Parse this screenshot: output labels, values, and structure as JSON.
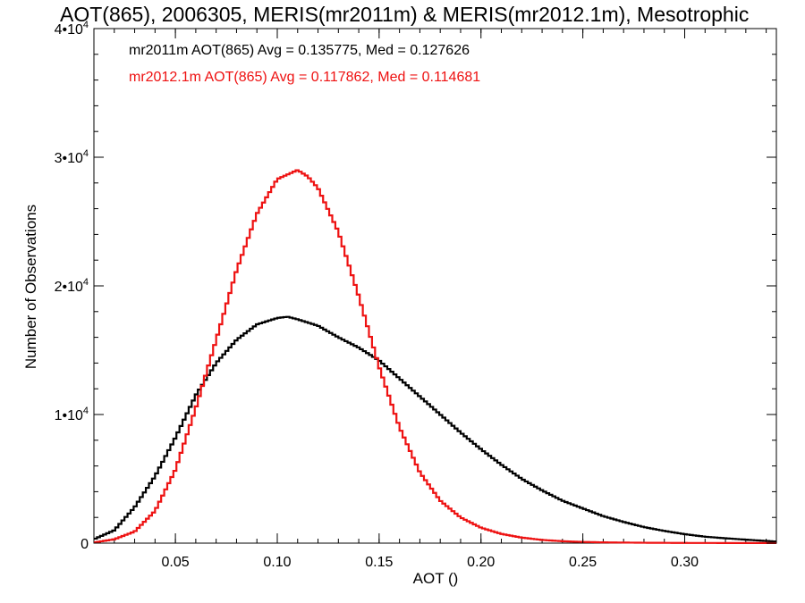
{
  "chart_data": {
    "type": "line",
    "title": "AOT(865), 2006305, MERIS(mr2011m) & MERIS(mr2012.1m), Mesotrophic",
    "xlabel": "AOT ()",
    "ylabel": "Number of Observations",
    "xlim": [
      0.01,
      0.345
    ],
    "ylim": [
      0,
      40000
    ],
    "x_ticks": [
      0.05,
      0.1,
      0.15,
      0.2,
      0.25,
      0.3
    ],
    "x_tick_labels": [
      "0.05",
      "0.10",
      "0.15",
      "0.20",
      "0.25",
      "0.30"
    ],
    "y_ticks": [
      {
        "value": 0,
        "base": "0",
        "exp": ""
      },
      {
        "value": 10000,
        "base": "1•10",
        "exp": "4"
      },
      {
        "value": 20000,
        "base": "2•10",
        "exp": "4"
      },
      {
        "value": 30000,
        "base": "3•10",
        "exp": "4"
      },
      {
        "value": 40000,
        "base": "4•10",
        "exp": "4"
      }
    ],
    "grid": false,
    "legend_position": "top-left",
    "annotations": [
      {
        "text": "mr2011m AOT(865) Avg = 0.135775, Med = 0.127626",
        "color": "#000000"
      },
      {
        "text": "mr2012.1m AOT(865) Avg = 0.117862, Med = 0.114681",
        "color": "#ee1111"
      }
    ],
    "series": [
      {
        "color": "#000000",
        "x": [
          0.01,
          0.02,
          0.03,
          0.04,
          0.05,
          0.06,
          0.07,
          0.08,
          0.09,
          0.1,
          0.105,
          0.11,
          0.12,
          0.13,
          0.14,
          0.15,
          0.16,
          0.17,
          0.18,
          0.19,
          0.2,
          0.21,
          0.22,
          0.23,
          0.24,
          0.25,
          0.26,
          0.27,
          0.28,
          0.29,
          0.3,
          0.31,
          0.32,
          0.33,
          0.345
        ],
        "y": [
          300,
          1000,
          2800,
          5200,
          8200,
          11500,
          14000,
          15800,
          17000,
          17500,
          17600,
          17400,
          16900,
          16000,
          15200,
          14200,
          12800,
          11400,
          10000,
          8600,
          7300,
          6100,
          5000,
          4100,
          3300,
          2700,
          2100,
          1650,
          1250,
          950,
          700,
          500,
          380,
          270,
          120
        ]
      },
      {
        "color": "#ee1111",
        "x": [
          0.01,
          0.02,
          0.03,
          0.04,
          0.05,
          0.06,
          0.07,
          0.08,
          0.09,
          0.1,
          0.11,
          0.115,
          0.12,
          0.13,
          0.14,
          0.15,
          0.16,
          0.17,
          0.18,
          0.19,
          0.2,
          0.21,
          0.22,
          0.23,
          0.24,
          0.25,
          0.26,
          0.28,
          0.3,
          0.345
        ],
        "y": [
          50,
          300,
          900,
          2500,
          5700,
          10500,
          15800,
          21200,
          25600,
          28300,
          29000,
          28500,
          27600,
          24200,
          19200,
          13700,
          9000,
          5500,
          3300,
          2000,
          1200,
          720,
          430,
          250,
          150,
          95,
          60,
          30,
          15,
          5
        ]
      }
    ]
  }
}
